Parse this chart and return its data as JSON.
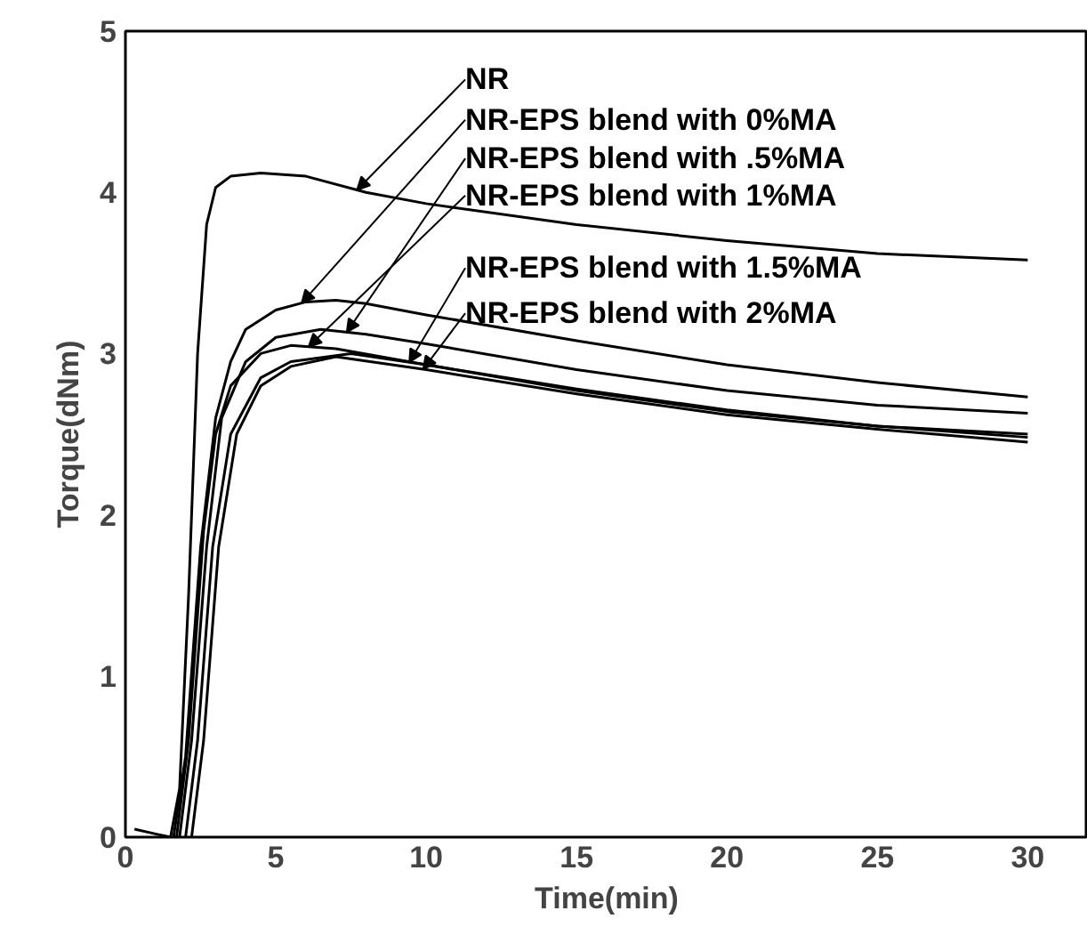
{
  "chart_data": {
    "type": "line",
    "xlabel": "Time(min)",
    "ylabel": "Torque(dNm)",
    "xlim": [
      0,
      32
    ],
    "ylim": [
      0,
      5
    ],
    "xticks": [
      0,
      5,
      10,
      15,
      20,
      25,
      30
    ],
    "yticks": [
      0,
      1,
      2,
      3,
      4,
      5
    ],
    "grid": false,
    "marker": "none",
    "line_style": "solid",
    "series": [
      {
        "name": "NR",
        "color": "#000000",
        "x": [
          0.3,
          1,
          1.5,
          1.8,
          2.1,
          2.4,
          2.7,
          3.0,
          3.5,
          4.5,
          6,
          8,
          10,
          15,
          20,
          25,
          30
        ],
        "values": [
          0.05,
          0.02,
          0.0,
          0.3,
          1.5,
          3.0,
          3.8,
          4.03,
          4.1,
          4.12,
          4.1,
          4.0,
          3.93,
          3.8,
          3.7,
          3.62,
          3.58
        ]
      },
      {
        "name": "NR-EPS blend with 0%MA",
        "color": "#000000",
        "x": [
          1.6,
          2.0,
          2.5,
          3,
          3.5,
          4,
          5,
          6,
          7,
          8,
          10,
          15,
          20,
          25,
          30
        ],
        "values": [
          0,
          0.5,
          1.8,
          2.6,
          2.95,
          3.15,
          3.27,
          3.32,
          3.33,
          3.31,
          3.24,
          3.08,
          2.93,
          2.82,
          2.73
        ]
      },
      {
        "name": "NR-EPS blend with .5%MA",
        "color": "#000000",
        "x": [
          1.8,
          2.2,
          2.7,
          3.2,
          4,
          5,
          6.5,
          8,
          10,
          15,
          20,
          25,
          30
        ],
        "values": [
          0,
          0.6,
          1.8,
          2.6,
          2.95,
          3.1,
          3.15,
          3.12,
          3.06,
          2.9,
          2.77,
          2.68,
          2.63
        ]
      },
      {
        "name": "NR-EPS blend with 1%MA",
        "color": "#000000",
        "x": [
          1.7,
          2.1,
          2.6,
          3,
          3.5,
          4.5,
          5.5,
          7,
          10,
          15,
          20,
          25,
          30
        ],
        "values": [
          0,
          0.6,
          1.9,
          2.5,
          2.8,
          3.0,
          3.05,
          3.03,
          2.93,
          2.78,
          2.65,
          2.55,
          2.5
        ]
      },
      {
        "name": "NR-EPS blend with 1.5%MA",
        "color": "#000000",
        "x": [
          2.0,
          2.4,
          2.9,
          3.5,
          4.5,
          5.5,
          7.5,
          10,
          15,
          20,
          25,
          30
        ],
        "values": [
          0,
          0.6,
          1.8,
          2.5,
          2.85,
          2.95,
          3.0,
          2.93,
          2.77,
          2.64,
          2.55,
          2.48
        ]
      },
      {
        "name": "NR-EPS blend with 2%MA",
        "color": "#000000",
        "x": [
          2.2,
          2.6,
          3.1,
          3.7,
          4.5,
          5.5,
          7,
          10,
          15,
          20,
          25,
          30
        ],
        "values": [
          0,
          0.6,
          1.8,
          2.5,
          2.8,
          2.92,
          2.98,
          2.9,
          2.75,
          2.62,
          2.53,
          2.45
        ]
      }
    ]
  }
}
